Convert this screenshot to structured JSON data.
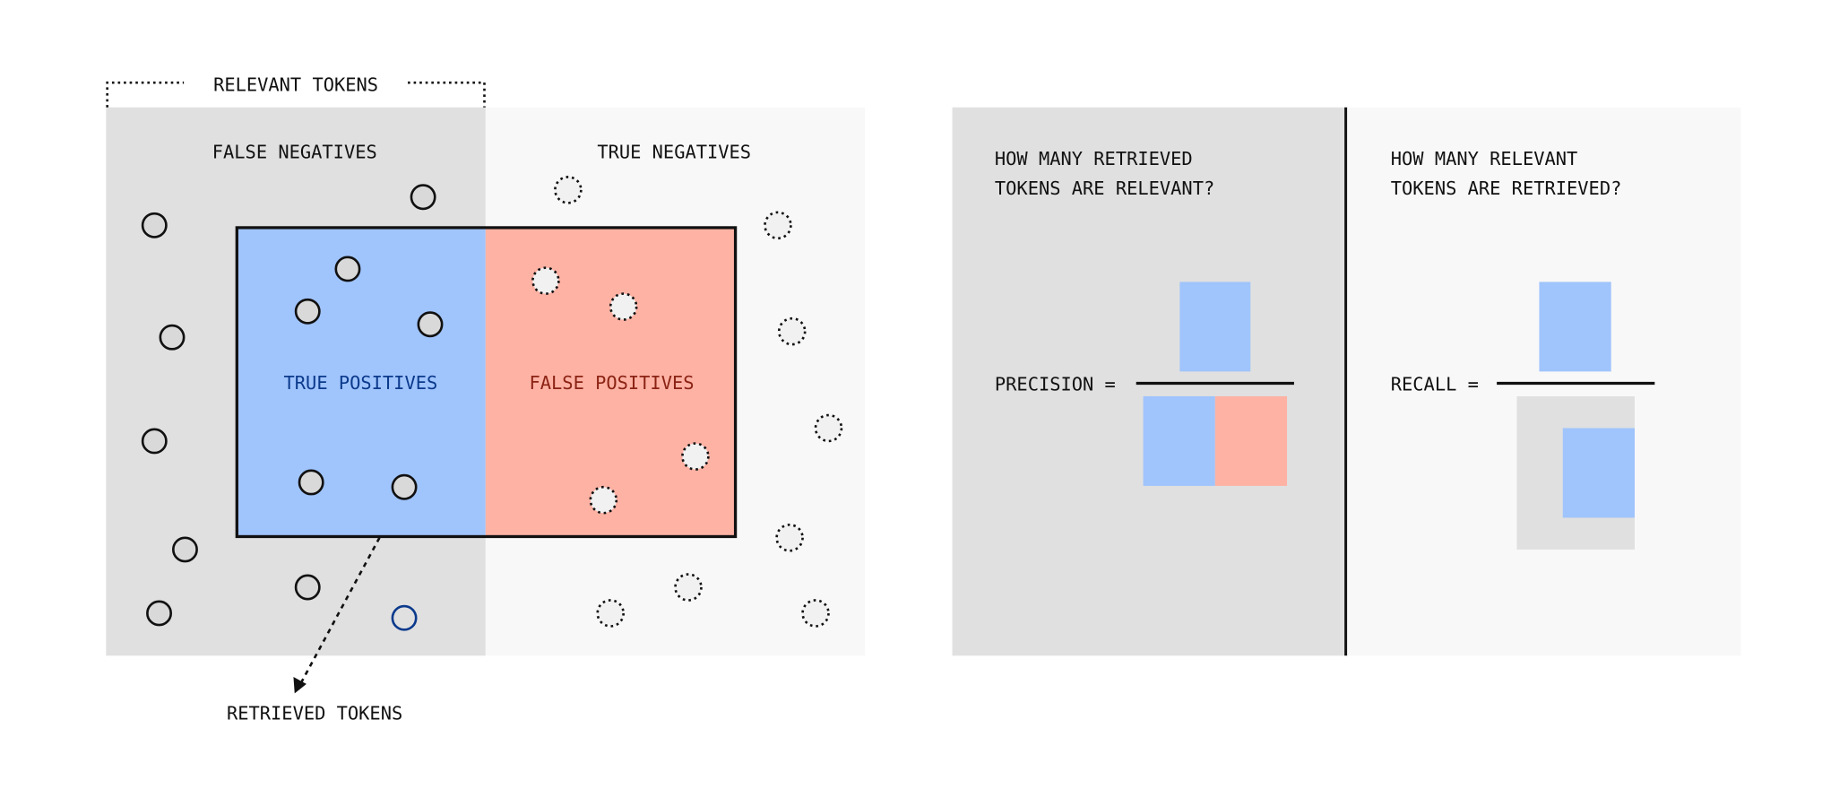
{
  "left_diagram": {
    "relevant_label": "RELEVANT TOKENS",
    "false_negatives": "FALSE NEGATIVES",
    "true_negatives": "TRUE NEGATIVES",
    "true_positives": "TRUE POSITIVES",
    "false_positives": "FALSE POSITIVES",
    "retrieved_label": "RETRIEVED TOKENS"
  },
  "precision_panel": {
    "question_line1": "HOW MANY RETRIEVED",
    "question_line2": "TOKENS ARE RELEVANT?",
    "formula_label": "PRECISION ="
  },
  "recall_panel": {
    "question_line1": "HOW MANY RELEVANT",
    "question_line2": "TOKENS ARE RETRIEVED?",
    "formula_label": "RECALL ="
  },
  "colors": {
    "relevant_bg": "#e0e0e0",
    "irrelevant_bg": "#f8f8f8",
    "true_positive": "#a0c4fc",
    "false_positive": "#fdb2a4",
    "true_positive_text": "#0b3a8c",
    "false_positive_text": "#8b2314"
  }
}
